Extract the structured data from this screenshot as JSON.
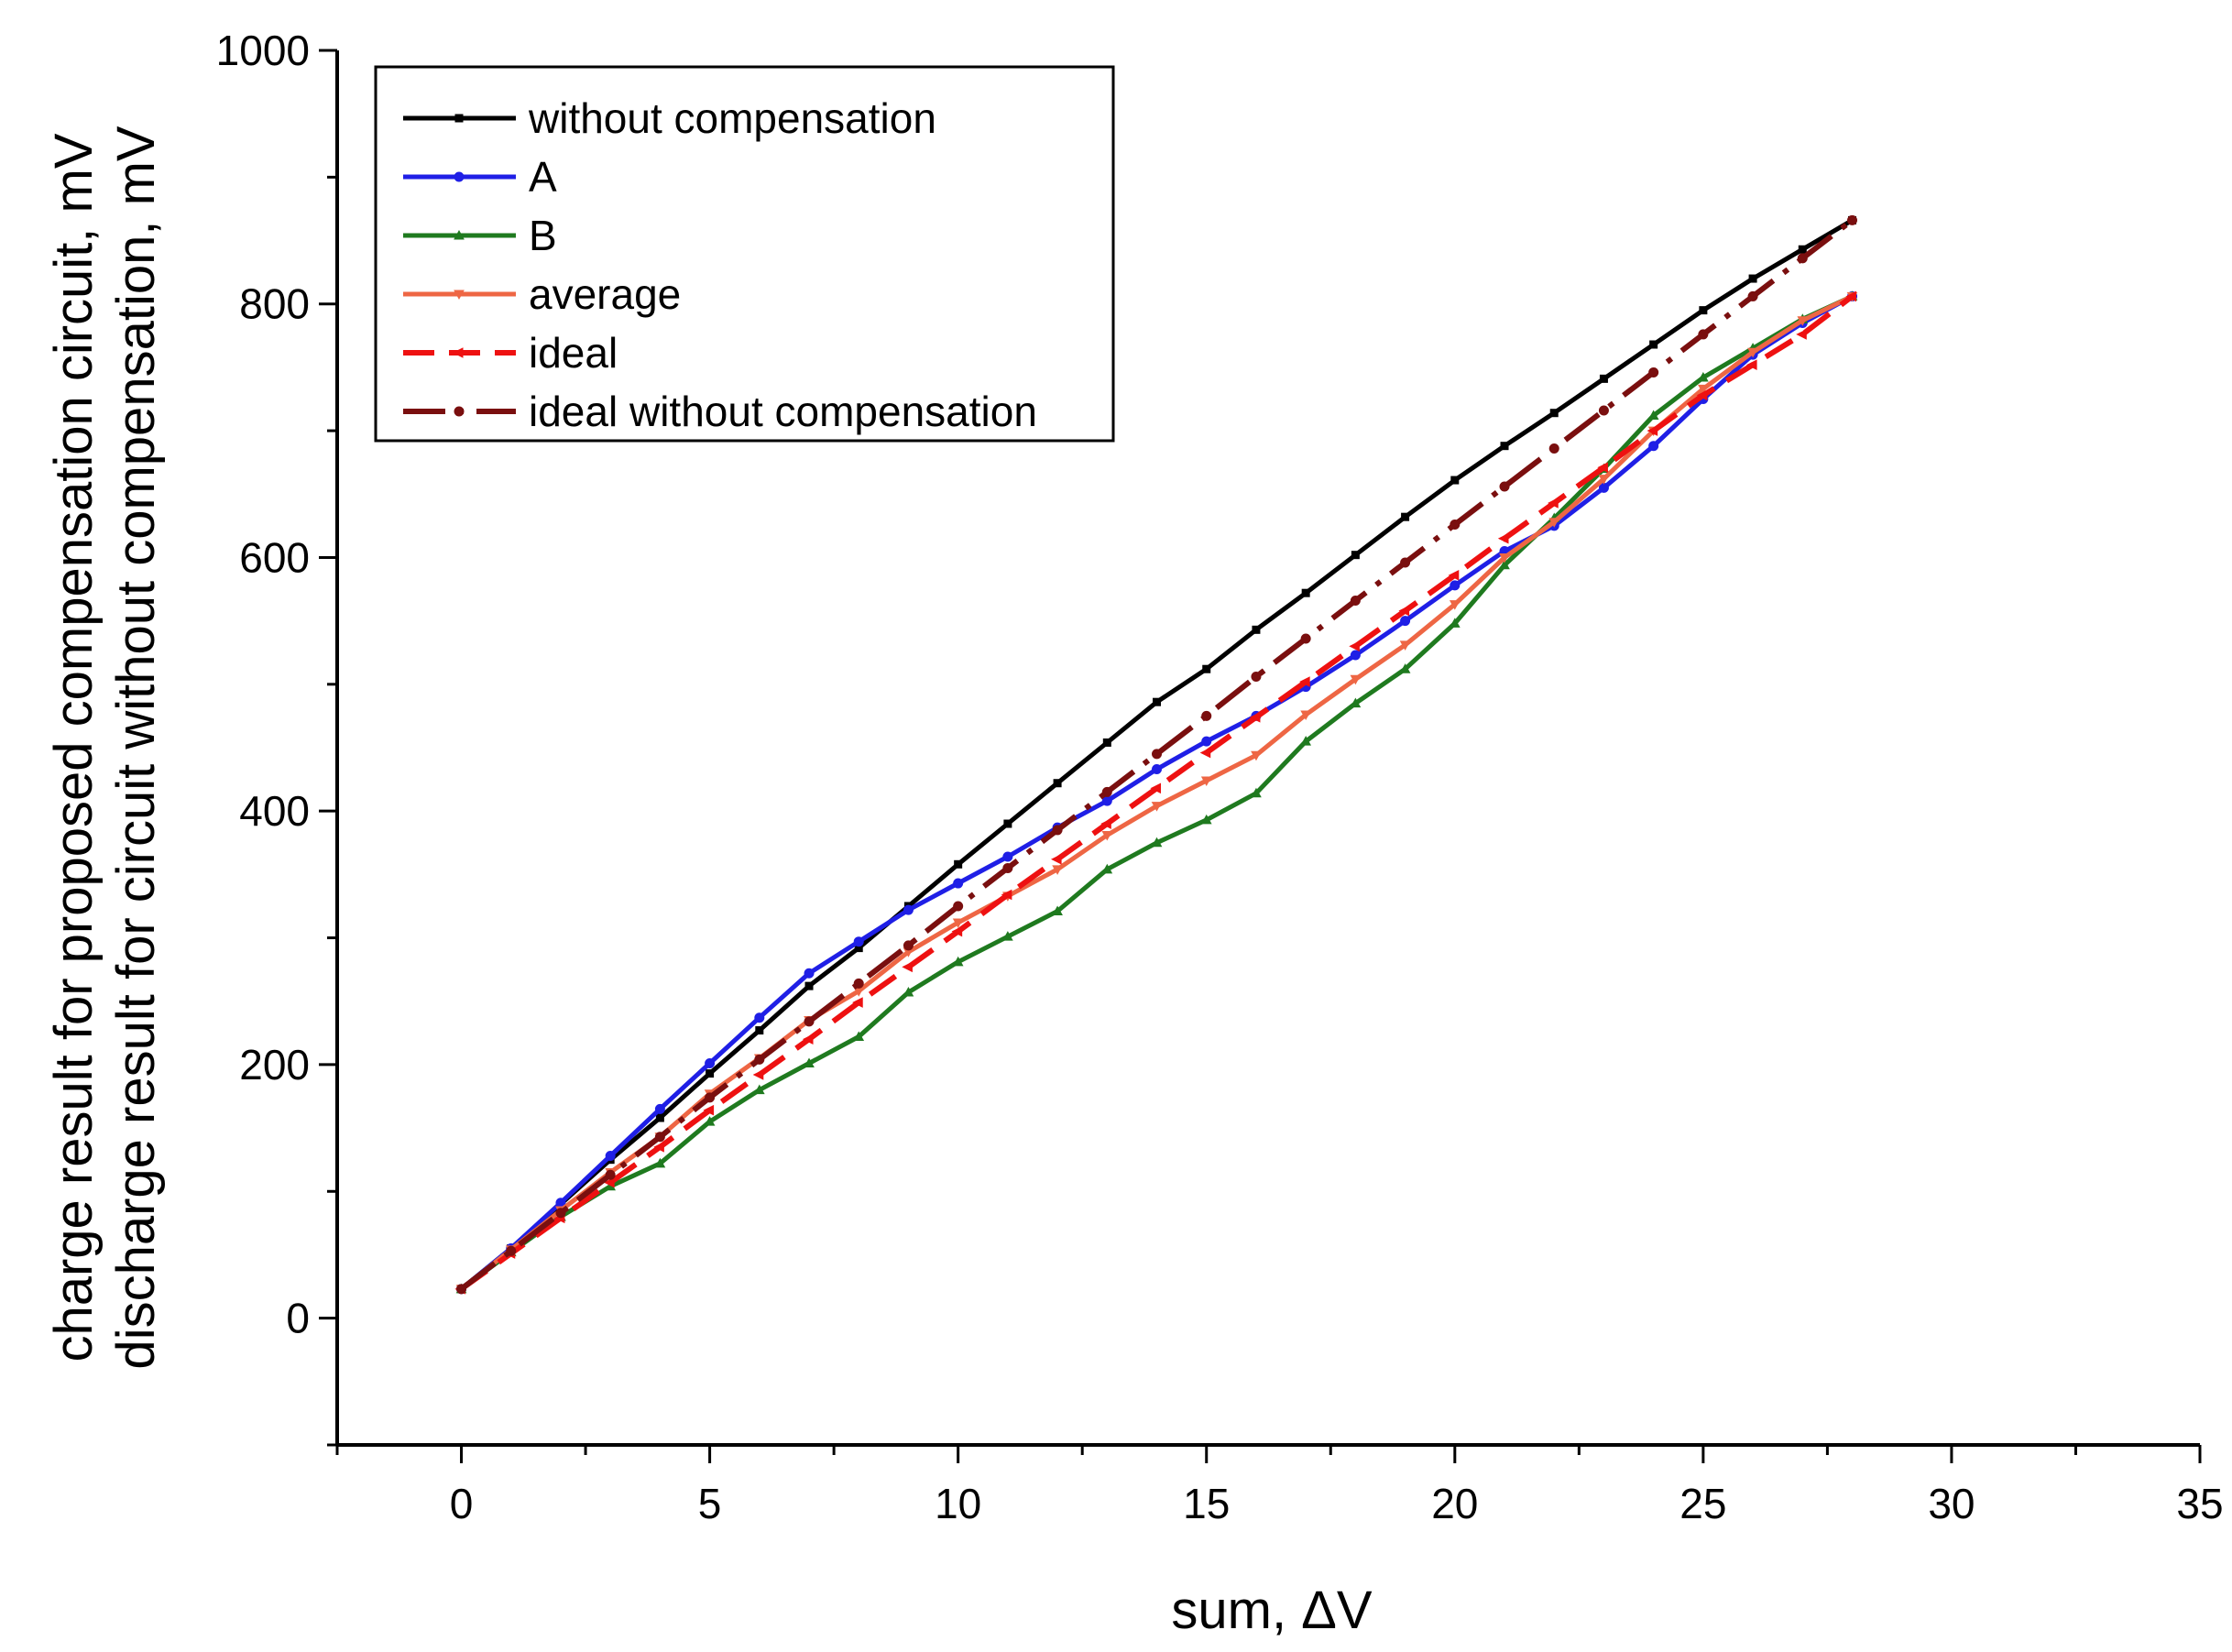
{
  "chart_data": {
    "type": "line",
    "title": "",
    "xlabel": "sum, ΔV",
    "ylabel_lines": [
      "charge result for proposed compensation circuit, mV",
      "discharge result for circuit without compensation, mV"
    ],
    "xlim": [
      -2.5,
      35
    ],
    "ylim": [
      -100,
      1000
    ],
    "xticks": [
      0,
      5,
      10,
      15,
      20,
      25,
      30,
      35
    ],
    "yticks": [
      0,
      200,
      400,
      600,
      800,
      1000
    ],
    "grid": false,
    "legend_position": "top-left",
    "series": [
      {
        "name": "without compensation",
        "color": "#000000",
        "dash": "solid",
        "marker": "square",
        "x": [
          0,
          1,
          2,
          3,
          4,
          5,
          6,
          7,
          8,
          9,
          10,
          11,
          12,
          13,
          14,
          15,
          16,
          17,
          18,
          19,
          20,
          21,
          22,
          23,
          24,
          25,
          26,
          27,
          28
        ],
        "y": [
          23,
          55,
          90,
          125,
          158,
          193,
          227,
          262,
          292,
          325,
          358,
          390,
          422,
          454,
          486,
          512,
          543,
          572,
          602,
          632,
          661,
          688,
          714,
          741,
          768,
          795,
          820,
          843,
          866
        ]
      },
      {
        "name": "A",
        "color": "#1f1fe6",
        "dash": "solid",
        "marker": "circle",
        "x": [
          0,
          1,
          2,
          3,
          4,
          5,
          6,
          7,
          8,
          9,
          10,
          11,
          12,
          13,
          14,
          15,
          16,
          17,
          18,
          19,
          20,
          21,
          22,
          23,
          24,
          25,
          26,
          27,
          28
        ],
        "y": [
          23,
          55,
          91,
          128,
          165,
          201,
          237,
          272,
          297,
          322,
          343,
          364,
          387,
          408,
          433,
          455,
          475,
          498,
          523,
          550,
          578,
          605,
          625,
          655,
          688,
          725,
          760,
          785,
          806
        ]
      },
      {
        "name": "B",
        "color": "#1f7a1f",
        "dash": "solid",
        "marker": "triangle",
        "x": [
          0,
          1,
          2,
          3,
          4,
          5,
          6,
          7,
          8,
          9,
          10,
          11,
          12,
          13,
          14,
          15,
          16,
          17,
          18,
          19,
          20,
          21,
          22,
          23,
          24,
          25,
          26,
          27,
          28
        ],
        "y": [
          23,
          52,
          80,
          104,
          122,
          155,
          180,
          201,
          222,
          257,
          281,
          301,
          321,
          354,
          375,
          393,
          414,
          455,
          485,
          512,
          548,
          594,
          631,
          670,
          712,
          742,
          765,
          788,
          806
        ]
      },
      {
        "name": "average",
        "color": "#ee6644",
        "dash": "solid",
        "marker": "triangle-down",
        "x": [
          0,
          1,
          2,
          3,
          4,
          5,
          6,
          7,
          8,
          9,
          10,
          11,
          12,
          13,
          14,
          15,
          16,
          17,
          18,
          19,
          20,
          21,
          22,
          23,
          24,
          25,
          26,
          27,
          28
        ],
        "y": [
          23,
          54,
          85,
          115,
          143,
          177,
          205,
          235,
          258,
          289,
          312,
          333,
          354,
          381,
          404,
          424,
          444,
          476,
          504,
          531,
          563,
          600,
          628,
          662,
          700,
          733,
          762,
          787,
          806
        ]
      },
      {
        "name": "ideal",
        "color": "#ee1111",
        "dash": "dash",
        "marker": "arrow-left",
        "x": [
          0,
          1,
          2,
          3,
          4,
          5,
          6,
          7,
          8,
          9,
          10,
          11,
          12,
          13,
          14,
          15,
          16,
          17,
          18,
          19,
          20,
          21,
          22,
          23,
          24,
          25,
          26,
          27,
          28
        ],
        "y": [
          23,
          51,
          79,
          107,
          135,
          164,
          192,
          220,
          249,
          277,
          305,
          334,
          362,
          390,
          418,
          446,
          474,
          502,
          530,
          558,
          586,
          615,
          643,
          671,
          700,
          728,
          752,
          776,
          806
        ]
      },
      {
        "name": "ideal without compensation",
        "color": "#7a0f0f",
        "dash": "dashdot",
        "marker": "circle",
        "x": [
          0,
          1,
          2,
          3,
          4,
          5,
          6,
          7,
          8,
          9,
          10,
          11,
          12,
          13,
          14,
          15,
          16,
          17,
          18,
          19,
          20,
          21,
          22,
          23,
          24,
          25,
          26,
          27,
          28
        ],
        "y": [
          23,
          53,
          83,
          113,
          143,
          174,
          204,
          234,
          264,
          294,
          325,
          355,
          385,
          415,
          445,
          475,
          506,
          536,
          566,
          596,
          626,
          656,
          686,
          716,
          746,
          776,
          806,
          836,
          866
        ]
      }
    ]
  }
}
